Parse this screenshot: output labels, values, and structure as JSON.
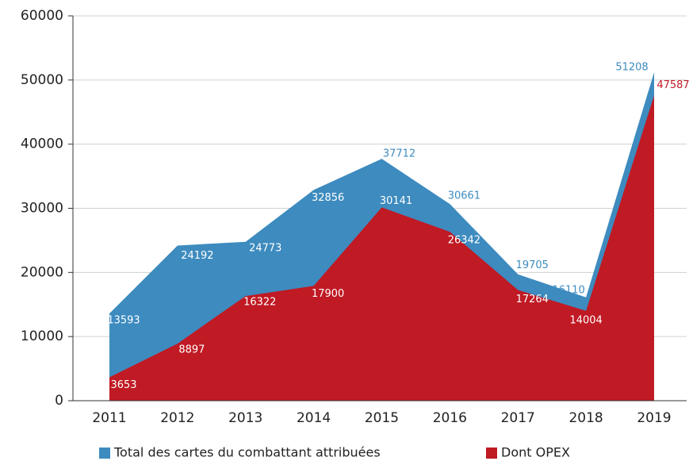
{
  "chart_data": {
    "type": "area",
    "categories": [
      "2011",
      "2012",
      "2013",
      "2014",
      "2015",
      "2016",
      "2017",
      "2018",
      "2019"
    ],
    "series": [
      {
        "name": "Total des cartes du combattant attribuées",
        "color": "#3d8bbf",
        "values": [
          13593,
          24192,
          24773,
          32856,
          37712,
          30661,
          19705,
          16110,
          51208
        ]
      },
      {
        "name": "Dont OPEX",
        "color": "#c01a24",
        "values": [
          3653,
          8897,
          16322,
          17900,
          30141,
          26342,
          17264,
          14004,
          47587
        ]
      }
    ],
    "ylim": [
      0,
      60000
    ],
    "yticks": [
      0,
      10000,
      20000,
      30000,
      40000,
      50000,
      60000
    ],
    "grid": true,
    "legend": "bottom"
  }
}
